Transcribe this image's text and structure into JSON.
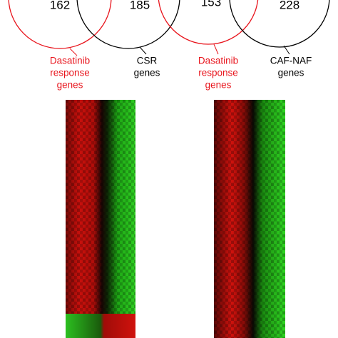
{
  "venns": [
    {
      "left_count": 162,
      "right_count": 185,
      "left_label": [
        "Dasatinib",
        "response",
        "genes"
      ],
      "right_label": [
        "CSR",
        "genes"
      ]
    },
    {
      "left_count": 153,
      "right_count": 228,
      "left_label": [
        "Dasatinib",
        "response",
        "genes"
      ],
      "right_label": [
        "CAF-NAF",
        "genes"
      ]
    }
  ]
}
